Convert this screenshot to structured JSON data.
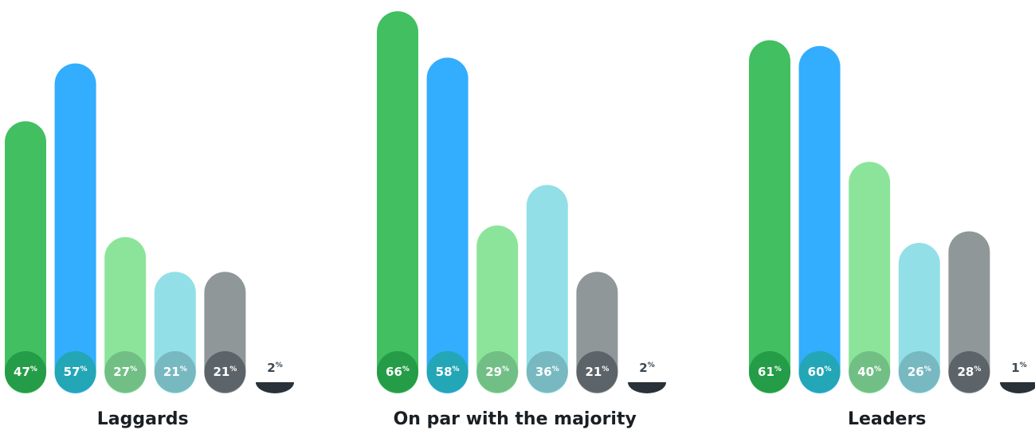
{
  "chart_data": {
    "type": "bar",
    "unit": "%",
    "ylim": [
      0,
      70
    ],
    "grid": false,
    "legend": "none",
    "colors": {
      "bars": [
        "#41bf61",
        "#33adfd",
        "#8ce49b",
        "#93dfe7",
        "#909799",
        "#283238"
      ],
      "badges": [
        "#259c47",
        "#23a6b6",
        "#72bf86",
        "#78b9c1",
        "#5d6469",
        "#283238"
      ]
    },
    "groups": [
      {
        "label": "Laggards",
        "values": [
          47,
          57,
          27,
          21,
          21,
          2
        ]
      },
      {
        "label": "On par with the majority",
        "values": [
          66,
          58,
          29,
          36,
          21,
          2
        ]
      },
      {
        "label": "Leaders",
        "values": [
          61,
          60,
          40,
          26,
          28,
          1
        ]
      }
    ]
  }
}
